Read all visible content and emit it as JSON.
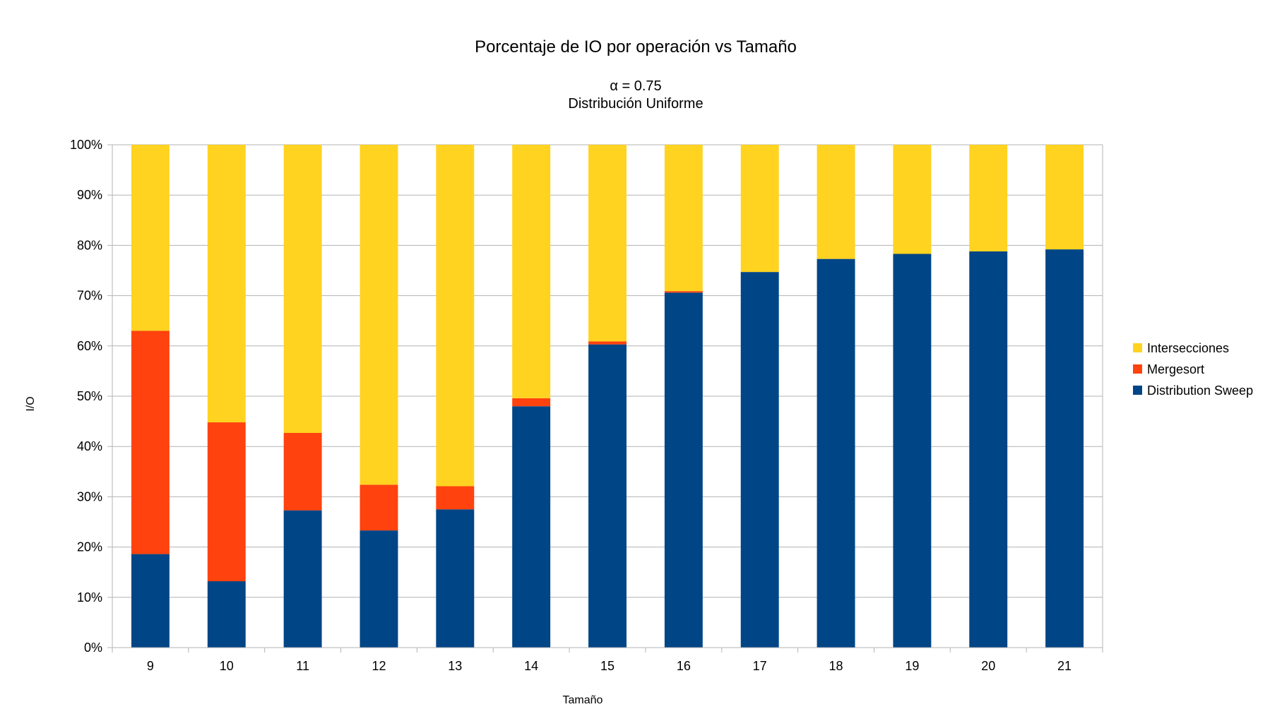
{
  "chart_data": {
    "type": "bar",
    "stacked": true,
    "percent_stacked": true,
    "title": "Porcentaje de IO por operación vs Tamaño",
    "subtitle_lines": [
      "α = 0.75",
      "Distribución Uniforme"
    ],
    "xlabel": "Tamaño",
    "ylabel": "I/O",
    "ylim": [
      0,
      100
    ],
    "y_ticks": [
      "0%",
      "10%",
      "20%",
      "30%",
      "40%",
      "50%",
      "60%",
      "70%",
      "80%",
      "90%",
      "100%"
    ],
    "grid": true,
    "legend_position": "right",
    "categories": [
      "9",
      "10",
      "11",
      "12",
      "13",
      "14",
      "15",
      "16",
      "17",
      "18",
      "19",
      "20",
      "21"
    ],
    "series": [
      {
        "name": "Distribution Sweep",
        "color": "#004586",
        "values": [
          18.6,
          13.2,
          27.3,
          23.3,
          27.5,
          48.0,
          60.3,
          70.6,
          74.7,
          77.3,
          78.3,
          78.8,
          79.2
        ]
      },
      {
        "name": "Mergesort",
        "color": "#ff420e",
        "values": [
          44.4,
          31.6,
          15.4,
          9.1,
          4.6,
          1.6,
          0.6,
          0.3,
          0.0,
          0.0,
          0.0,
          0.0,
          0.0
        ]
      },
      {
        "name": "Intersecciones",
        "color": "#ffd320",
        "values": [
          37.0,
          55.2,
          57.3,
          67.6,
          67.9,
          50.4,
          39.1,
          29.1,
          25.3,
          22.7,
          21.7,
          21.2,
          20.8
        ]
      }
    ],
    "legend_order": [
      "Intersecciones",
      "Mergesort",
      "Distribution Sweep"
    ]
  }
}
